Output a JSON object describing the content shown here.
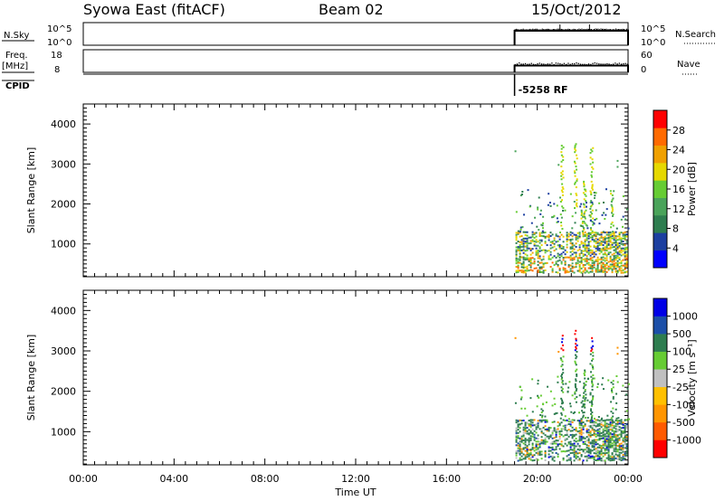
{
  "header": {
    "site": "Syowa East (fitACF)",
    "beam": "Beam 02",
    "date": "15/Oct/2012"
  },
  "panels": {
    "nsky": {
      "left_label": "N.Sky",
      "left_ticks": [
        "10^5",
        "10^0"
      ],
      "right_ticks": [
        "10^5",
        "10^0"
      ],
      "right_label": "N.Search",
      "nsky_level": 1.0,
      "nsearch_level": 0.5,
      "nsearch_spikes_x": [
        21.0,
        22.3
      ]
    },
    "freq": {
      "left_label_line1": "Freq.",
      "left_label_line2": "[MHz]",
      "left_ticks": [
        "18",
        "8"
      ],
      "right_ticks": [
        "60",
        "0"
      ],
      "right_label": "Nave",
      "freq_mhz": 11.0,
      "nave": 24
    },
    "cpid": {
      "label": "CPID",
      "value_text": "-5258 RF",
      "start_hour": 19.0
    }
  },
  "colors": {
    "power": [
      "#0000ff",
      "#1c3fa0",
      "#2e7d4f",
      "#4aa35a",
      "#66cc33",
      "#e6d800",
      "#f0a000",
      "#ff6a00",
      "#ff0000"
    ],
    "velocity": [
      "#ff0000",
      "#ff5a00",
      "#ff9500",
      "#ffc000",
      "#c0c0c0",
      "#66cc33",
      "#2e7d4f",
      "#1c4fa8",
      "#0000e6"
    ]
  },
  "chart_data": [
    {
      "type": "heatmap",
      "name": "power",
      "xlabel": "",
      "ylabel": "Slant Range [km]",
      "xlim": [
        0,
        24
      ],
      "ylim": [
        180,
        4500
      ],
      "yticks": [
        "1000",
        "2000",
        "3000",
        "4000"
      ],
      "colorbar_label": "Power [dB]",
      "colorbar_ticks": [
        "4",
        "8",
        "12",
        "16",
        "20",
        "24",
        "28"
      ],
      "data_start_hour": 19.0,
      "data_end_hour": 24.0,
      "dense_range_km": [
        300,
        1300
      ]
    },
    {
      "type": "heatmap",
      "name": "velocity",
      "xlabel": "Time UT",
      "ylabel": "Slant Range [km]",
      "xlim": [
        0,
        24
      ],
      "ylim": [
        180,
        4500
      ],
      "xticks": [
        "00:00",
        "04:00",
        "08:00",
        "12:00",
        "16:00",
        "20:00",
        "00:00"
      ],
      "yticks": [
        "1000",
        "2000",
        "3000",
        "4000"
      ],
      "colorbar_label": "Velocity [m s⁻¹]",
      "colorbar_ticks": [
        "-1000",
        "-500",
        "-100",
        "-25",
        "25",
        "100",
        "500",
        "1000"
      ],
      "data_start_hour": 19.0,
      "data_end_hour": 24.0,
      "dense_range_km": [
        300,
        1300
      ]
    }
  ]
}
